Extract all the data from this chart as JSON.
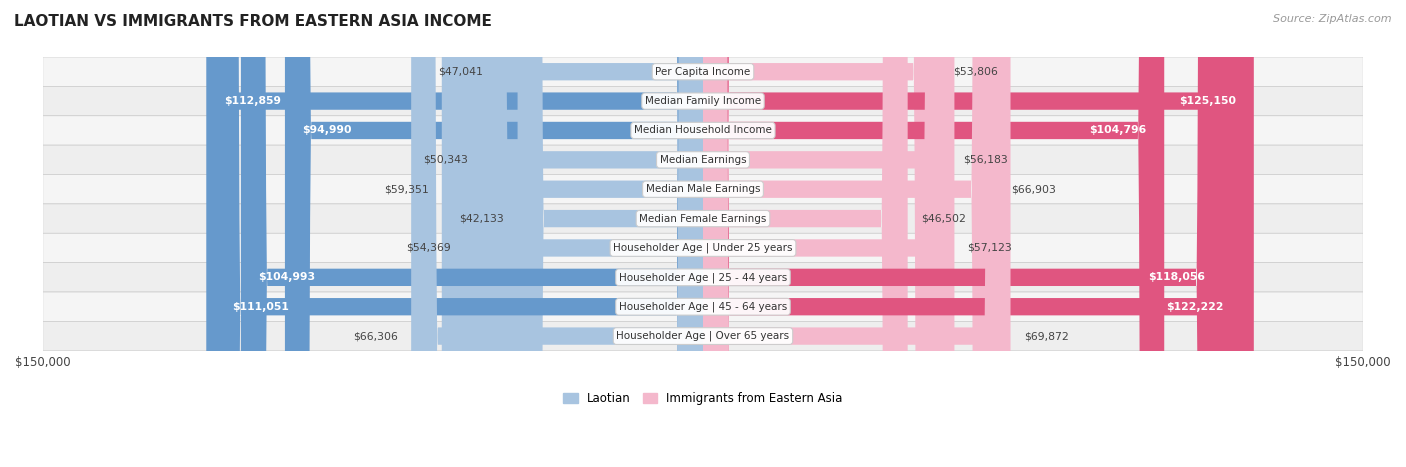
{
  "title": "LAOTIAN VS IMMIGRANTS FROM EASTERN ASIA INCOME",
  "source": "Source: ZipAtlas.com",
  "categories": [
    "Per Capita Income",
    "Median Family Income",
    "Median Household Income",
    "Median Earnings",
    "Median Male Earnings",
    "Median Female Earnings",
    "Householder Age | Under 25 years",
    "Householder Age | 25 - 44 years",
    "Householder Age | 45 - 64 years",
    "Householder Age | Over 65 years"
  ],
  "laotian_values": [
    47041,
    112859,
    94990,
    50343,
    59351,
    42133,
    54369,
    104993,
    111051,
    66306
  ],
  "eastern_asia_values": [
    53806,
    125150,
    104796,
    56183,
    66903,
    46502,
    57123,
    118056,
    122222,
    69872
  ],
  "laotian_labels": [
    "$47,041",
    "$112,859",
    "$94,990",
    "$50,343",
    "$59,351",
    "$42,133",
    "$54,369",
    "$104,993",
    "$111,051",
    "$66,306"
  ],
  "eastern_asia_labels": [
    "$53,806",
    "$125,150",
    "$104,796",
    "$56,183",
    "$66,903",
    "$46,502",
    "$57,123",
    "$118,056",
    "$122,222",
    "$69,872"
  ],
  "max_value": 150000,
  "laotian_color_light": "#a8c4e0",
  "laotian_color_dark": "#6699cc",
  "eastern_asia_color_light": "#f4b8cc",
  "eastern_asia_color_dark": "#e05580",
  "row_bg_odd": "#f0f0f0",
  "row_bg_even": "#e8e8e8",
  "row_border": "#d0d0d0",
  "inside_label_threshold": 0.5
}
